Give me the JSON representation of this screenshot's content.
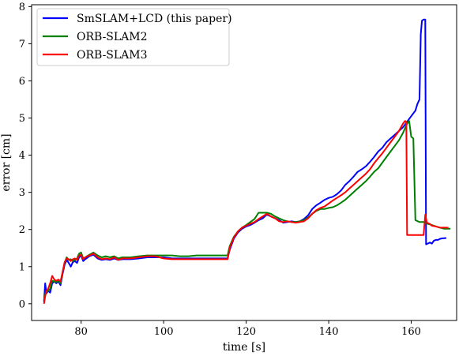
{
  "chart_data": {
    "type": "line",
    "title": "",
    "xlabel": "time [s]",
    "ylabel": "error [cm]",
    "xlim": [
      68,
      171
    ],
    "ylim": [
      -0.45,
      8.05
    ],
    "x_ticks": [
      80,
      100,
      120,
      140,
      160
    ],
    "y_ticks": [
      0,
      1,
      2,
      3,
      4,
      5,
      6,
      7,
      8
    ],
    "grid": false,
    "legend": "top-left",
    "series": [
      {
        "name": "SmSLAM+LCD (this paper)",
        "color": "#0000ff",
        "points": [
          [
            71.0,
            0.05
          ],
          [
            71.3,
            0.55
          ],
          [
            71.6,
            0.28
          ],
          [
            72.0,
            0.35
          ],
          [
            72.5,
            0.3
          ],
          [
            73.0,
            0.55
          ],
          [
            73.5,
            0.6
          ],
          [
            74.0,
            0.55
          ],
          [
            74.5,
            0.6
          ],
          [
            75.0,
            0.5
          ],
          [
            75.5,
            0.8
          ],
          [
            76.0,
            1.05
          ],
          [
            76.5,
            1.18
          ],
          [
            77.0,
            1.1
          ],
          [
            77.5,
            1.0
          ],
          [
            78.0,
            1.12
          ],
          [
            78.5,
            1.15
          ],
          [
            79.0,
            1.1
          ],
          [
            79.5,
            1.25
          ],
          [
            80.0,
            1.3
          ],
          [
            80.5,
            1.15
          ],
          [
            81.0,
            1.2
          ],
          [
            82.0,
            1.28
          ],
          [
            83.0,
            1.32
          ],
          [
            84.0,
            1.22
          ],
          [
            85.0,
            1.18
          ],
          [
            86.0,
            1.2
          ],
          [
            87.0,
            1.18
          ],
          [
            88.0,
            1.22
          ],
          [
            89.0,
            1.18
          ],
          [
            90.0,
            1.2
          ],
          [
            92.0,
            1.2
          ],
          [
            94.0,
            1.22
          ],
          [
            96.0,
            1.25
          ],
          [
            98.0,
            1.25
          ],
          [
            100.0,
            1.25
          ],
          [
            102.0,
            1.22
          ],
          [
            104.0,
            1.22
          ],
          [
            106.0,
            1.22
          ],
          [
            108.0,
            1.22
          ],
          [
            110.0,
            1.22
          ],
          [
            112.0,
            1.22
          ],
          [
            114.0,
            1.22
          ],
          [
            115.5,
            1.22
          ],
          [
            116.0,
            1.45
          ],
          [
            117.0,
            1.75
          ],
          [
            118.0,
            1.92
          ],
          [
            119.0,
            2.02
          ],
          [
            120.0,
            2.08
          ],
          [
            121.0,
            2.12
          ],
          [
            122.0,
            2.18
          ],
          [
            123.0,
            2.25
          ],
          [
            124.0,
            2.3
          ],
          [
            125.0,
            2.4
          ],
          [
            126.0,
            2.35
          ],
          [
            127.0,
            2.3
          ],
          [
            128.0,
            2.25
          ],
          [
            129.0,
            2.18
          ],
          [
            130.0,
            2.2
          ],
          [
            131.0,
            2.22
          ],
          [
            132.0,
            2.2
          ],
          [
            133.0,
            2.22
          ],
          [
            134.0,
            2.28
          ],
          [
            135.0,
            2.38
          ],
          [
            136.0,
            2.55
          ],
          [
            137.0,
            2.65
          ],
          [
            138.0,
            2.72
          ],
          [
            139.0,
            2.8
          ],
          [
            140.0,
            2.85
          ],
          [
            141.0,
            2.88
          ],
          [
            142.0,
            2.95
          ],
          [
            143.0,
            3.05
          ],
          [
            144.0,
            3.2
          ],
          [
            145.0,
            3.3
          ],
          [
            146.0,
            3.42
          ],
          [
            147.0,
            3.55
          ],
          [
            148.0,
            3.62
          ],
          [
            149.0,
            3.7
          ],
          [
            150.0,
            3.82
          ],
          [
            151.0,
            3.95
          ],
          [
            152.0,
            4.1
          ],
          [
            153.0,
            4.2
          ],
          [
            154.0,
            4.35
          ],
          [
            155.0,
            4.45
          ],
          [
            156.0,
            4.55
          ],
          [
            157.0,
            4.65
          ],
          [
            158.0,
            4.75
          ],
          [
            159.0,
            4.9
          ],
          [
            160.0,
            5.05
          ],
          [
            161.0,
            5.2
          ],
          [
            161.5,
            5.38
          ],
          [
            162.0,
            5.5
          ],
          [
            162.3,
            7.25
          ],
          [
            162.6,
            7.62
          ],
          [
            163.0,
            7.65
          ],
          [
            163.4,
            7.65
          ],
          [
            163.6,
            1.6
          ],
          [
            164.0,
            1.62
          ],
          [
            164.5,
            1.65
          ],
          [
            165.0,
            1.62
          ],
          [
            165.5,
            1.7
          ],
          [
            166.0,
            1.72
          ],
          [
            166.5,
            1.72
          ],
          [
            167.0,
            1.75
          ],
          [
            167.5,
            1.76
          ],
          [
            168.5,
            1.77
          ]
        ]
      },
      {
        "name": "ORB-SLAM2",
        "color": "#008000",
        "points": [
          [
            71.0,
            0.1
          ],
          [
            71.4,
            0.3
          ],
          [
            72.0,
            0.35
          ],
          [
            72.5,
            0.4
          ],
          [
            73.0,
            0.62
          ],
          [
            73.5,
            0.6
          ],
          [
            74.0,
            0.58
          ],
          [
            74.5,
            0.62
          ],
          [
            75.0,
            0.55
          ],
          [
            75.5,
            0.85
          ],
          [
            76.0,
            1.1
          ],
          [
            76.5,
            1.25
          ],
          [
            77.0,
            1.18
          ],
          [
            77.5,
            1.2
          ],
          [
            78.0,
            1.15
          ],
          [
            78.5,
            1.18
          ],
          [
            79.0,
            1.22
          ],
          [
            79.5,
            1.35
          ],
          [
            80.0,
            1.38
          ],
          [
            80.5,
            1.22
          ],
          [
            81.0,
            1.25
          ],
          [
            82.0,
            1.32
          ],
          [
            83.0,
            1.38
          ],
          [
            84.0,
            1.3
          ],
          [
            85.0,
            1.25
          ],
          [
            86.0,
            1.28
          ],
          [
            87.0,
            1.25
          ],
          [
            88.0,
            1.28
          ],
          [
            89.0,
            1.22
          ],
          [
            90.0,
            1.25
          ],
          [
            92.0,
            1.25
          ],
          [
            94.0,
            1.28
          ],
          [
            96.0,
            1.3
          ],
          [
            98.0,
            1.3
          ],
          [
            100.0,
            1.3
          ],
          [
            102.0,
            1.3
          ],
          [
            104.0,
            1.28
          ],
          [
            106.0,
            1.28
          ],
          [
            108.0,
            1.3
          ],
          [
            110.0,
            1.3
          ],
          [
            112.0,
            1.3
          ],
          [
            114.0,
            1.3
          ],
          [
            115.5,
            1.3
          ],
          [
            116.0,
            1.55
          ],
          [
            117.0,
            1.8
          ],
          [
            118.0,
            1.95
          ],
          [
            119.0,
            2.05
          ],
          [
            120.0,
            2.12
          ],
          [
            121.0,
            2.2
          ],
          [
            122.0,
            2.28
          ],
          [
            123.0,
            2.45
          ],
          [
            124.0,
            2.45
          ],
          [
            125.0,
            2.45
          ],
          [
            126.0,
            2.42
          ],
          [
            127.0,
            2.35
          ],
          [
            128.0,
            2.3
          ],
          [
            129.0,
            2.25
          ],
          [
            130.0,
            2.22
          ],
          [
            131.0,
            2.2
          ],
          [
            132.0,
            2.2
          ],
          [
            133.0,
            2.22
          ],
          [
            134.0,
            2.25
          ],
          [
            135.0,
            2.32
          ],
          [
            136.0,
            2.42
          ],
          [
            137.0,
            2.5
          ],
          [
            138.0,
            2.55
          ],
          [
            139.0,
            2.55
          ],
          [
            140.0,
            2.58
          ],
          [
            141.0,
            2.6
          ],
          [
            142.0,
            2.65
          ],
          [
            143.0,
            2.72
          ],
          [
            144.0,
            2.8
          ],
          [
            145.0,
            2.9
          ],
          [
            146.0,
            3.0
          ],
          [
            147.0,
            3.1
          ],
          [
            148.0,
            3.2
          ],
          [
            149.0,
            3.3
          ],
          [
            150.0,
            3.42
          ],
          [
            151.0,
            3.55
          ],
          [
            152.0,
            3.65
          ],
          [
            153.0,
            3.8
          ],
          [
            154.0,
            3.95
          ],
          [
            155.0,
            4.1
          ],
          [
            156.0,
            4.25
          ],
          [
            157.0,
            4.4
          ],
          [
            158.0,
            4.6
          ],
          [
            159.0,
            4.85
          ],
          [
            159.5,
            4.92
          ],
          [
            160.0,
            4.5
          ],
          [
            160.5,
            4.45
          ],
          [
            161.0,
            2.25
          ],
          [
            162.0,
            2.2
          ],
          [
            163.0,
            2.2
          ],
          [
            164.0,
            2.15
          ],
          [
            165.0,
            2.12
          ],
          [
            166.0,
            2.08
          ],
          [
            167.0,
            2.05
          ],
          [
            168.0,
            2.02
          ],
          [
            169.5,
            2.02
          ]
        ]
      },
      {
        "name": "ORB-SLAM3",
        "color": "#ff0000",
        "points": [
          [
            71.0,
            0.0
          ],
          [
            71.3,
            0.2
          ],
          [
            71.6,
            0.35
          ],
          [
            72.0,
            0.4
          ],
          [
            72.5,
            0.55
          ],
          [
            73.0,
            0.75
          ],
          [
            73.5,
            0.65
          ],
          [
            74.0,
            0.62
          ],
          [
            74.5,
            0.65
          ],
          [
            75.0,
            0.6
          ],
          [
            75.5,
            0.85
          ],
          [
            76.0,
            1.12
          ],
          [
            76.5,
            1.22
          ],
          [
            77.0,
            1.2
          ],
          [
            77.5,
            1.15
          ],
          [
            78.0,
            1.2
          ],
          [
            78.5,
            1.22
          ],
          [
            79.0,
            1.18
          ],
          [
            79.5,
            1.3
          ],
          [
            80.0,
            1.32
          ],
          [
            80.5,
            1.2
          ],
          [
            81.0,
            1.25
          ],
          [
            82.0,
            1.3
          ],
          [
            83.0,
            1.35
          ],
          [
            84.0,
            1.25
          ],
          [
            85.0,
            1.2
          ],
          [
            86.0,
            1.22
          ],
          [
            87.0,
            1.2
          ],
          [
            88.0,
            1.25
          ],
          [
            89.0,
            1.18
          ],
          [
            90.0,
            1.22
          ],
          [
            92.0,
            1.22
          ],
          [
            94.0,
            1.25
          ],
          [
            96.0,
            1.28
          ],
          [
            98.0,
            1.28
          ],
          [
            100.0,
            1.22
          ],
          [
            102.0,
            1.2
          ],
          [
            104.0,
            1.2
          ],
          [
            106.0,
            1.2
          ],
          [
            108.0,
            1.2
          ],
          [
            110.0,
            1.2
          ],
          [
            112.0,
            1.2
          ],
          [
            114.0,
            1.2
          ],
          [
            115.5,
            1.2
          ],
          [
            116.0,
            1.5
          ],
          [
            117.0,
            1.78
          ],
          [
            118.0,
            1.95
          ],
          [
            119.0,
            2.05
          ],
          [
            120.0,
            2.1
          ],
          [
            121.0,
            2.15
          ],
          [
            122.0,
            2.2
          ],
          [
            123.0,
            2.28
          ],
          [
            124.0,
            2.35
          ],
          [
            125.0,
            2.42
          ],
          [
            126.0,
            2.35
          ],
          [
            127.0,
            2.3
          ],
          [
            128.0,
            2.22
          ],
          [
            129.0,
            2.2
          ],
          [
            130.0,
            2.22
          ],
          [
            131.0,
            2.2
          ],
          [
            132.0,
            2.18
          ],
          [
            133.0,
            2.2
          ],
          [
            134.0,
            2.22
          ],
          [
            135.0,
            2.3
          ],
          [
            136.0,
            2.42
          ],
          [
            137.0,
            2.52
          ],
          [
            138.0,
            2.58
          ],
          [
            139.0,
            2.62
          ],
          [
            140.0,
            2.7
          ],
          [
            141.0,
            2.78
          ],
          [
            142.0,
            2.85
          ],
          [
            143.0,
            2.92
          ],
          [
            144.0,
            3.0
          ],
          [
            145.0,
            3.1
          ],
          [
            146.0,
            3.2
          ],
          [
            147.0,
            3.3
          ],
          [
            148.0,
            3.4
          ],
          [
            149.0,
            3.5
          ],
          [
            150.0,
            3.62
          ],
          [
            151.0,
            3.78
          ],
          [
            152.0,
            3.92
          ],
          [
            153.0,
            4.05
          ],
          [
            154.0,
            4.2
          ],
          [
            155.0,
            4.35
          ],
          [
            156.0,
            4.5
          ],
          [
            157.0,
            4.65
          ],
          [
            158.0,
            4.85
          ],
          [
            158.5,
            4.92
          ],
          [
            158.8,
            4.9
          ],
          [
            159.0,
            1.85
          ],
          [
            160.0,
            1.85
          ],
          [
            161.0,
            1.85
          ],
          [
            162.0,
            1.85
          ],
          [
            163.0,
            1.85
          ],
          [
            163.4,
            2.4
          ],
          [
            163.8,
            2.18
          ],
          [
            164.5,
            2.15
          ],
          [
            165.0,
            2.1
          ],
          [
            166.0,
            2.08
          ],
          [
            167.0,
            2.05
          ],
          [
            168.0,
            2.05
          ],
          [
            169.0,
            2.05
          ]
        ]
      }
    ]
  }
}
